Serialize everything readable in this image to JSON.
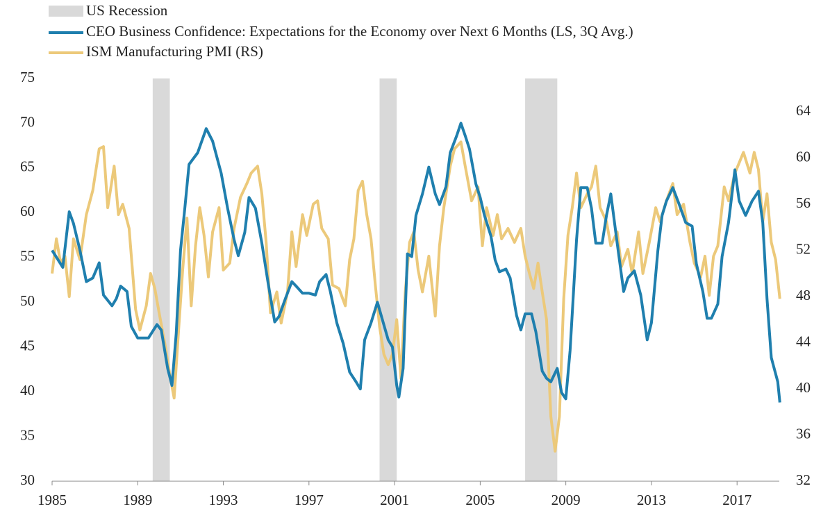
{
  "chart_data": {
    "type": "line",
    "recessions": {
      "name": "US Recession",
      "color": "#d9d9d9",
      "periods": [
        [
          1989.7,
          1990.5
        ],
        [
          2000.3,
          2001.1
        ],
        [
          2007.1,
          2008.6
        ]
      ]
    },
    "xlim": [
      1985,
      2019.2
    ],
    "xticks": [
      1985,
      1989,
      1993,
      1997,
      2001,
      2005,
      2009,
      2013,
      2017
    ],
    "ylim": [
      30,
      75
    ],
    "yticks": [
      30,
      35,
      40,
      45,
      50,
      55,
      60,
      65,
      70,
      75
    ],
    "y2lim": [
      32,
      66.9
    ],
    "y2ticks": [
      32,
      36,
      40,
      44,
      48,
      52,
      56,
      60,
      64
    ],
    "series": [
      {
        "name": "CEO Business Confidence: Expectations for the Economy over Next 6 Months (LS, 3Q Avg.)",
        "color": "#1f7fae",
        "axis": "y",
        "x": [
          1985.0,
          1985.5,
          1985.8,
          1986.0,
          1986.3,
          1986.6,
          1986.9,
          1987.2,
          1987.4,
          1987.8,
          1988.0,
          1988.2,
          1988.5,
          1988.7,
          1989.0,
          1989.5,
          1989.9,
          1990.1,
          1990.4,
          1990.6,
          1990.8,
          1991.0,
          1991.2,
          1991.4,
          1991.8,
          1992.2,
          1992.5,
          1992.9,
          1993.2,
          1993.5,
          1993.7,
          1994.0,
          1994.2,
          1994.5,
          1994.8,
          1995.1,
          1995.4,
          1995.6,
          1995.9,
          1996.2,
          1996.4,
          1996.7,
          1997.0,
          1997.3,
          1997.5,
          1997.8,
          1998.0,
          1998.3,
          1998.6,
          1998.9,
          1999.2,
          1999.4,
          1999.6,
          1999.9,
          2000.2,
          2000.4,
          2000.7,
          2000.9,
          2001.1,
          2001.2,
          2001.4,
          2001.6,
          2001.8,
          2002.0,
          2002.3,
          2002.6,
          2002.9,
          2003.1,
          2003.4,
          2003.6,
          2003.9,
          2004.1,
          2004.3,
          2004.5,
          2004.8,
          2005.0,
          2005.2,
          2005.5,
          2005.7,
          2005.9,
          2006.2,
          2006.4,
          2006.7,
          2006.9,
          2007.1,
          2007.4,
          2007.6,
          2007.9,
          2008.1,
          2008.3,
          2008.6,
          2008.8,
          2009.0,
          2009.2,
          2009.5,
          2009.7,
          2010.0,
          2010.2,
          2010.4,
          2010.7,
          2010.9,
          2011.1,
          2011.4,
          2011.7,
          2011.9,
          2012.2,
          2012.5,
          2012.8,
          2013.0,
          2013.3,
          2013.5,
          2013.7,
          2014.0,
          2014.3,
          2014.6,
          2014.9,
          2015.1,
          2015.4,
          2015.6,
          2015.8,
          2016.1,
          2016.3,
          2016.6,
          2016.9,
          2017.1,
          2017.4,
          2017.7,
          2018.0,
          2018.2,
          2018.4,
          2018.6,
          2018.9,
          2019.0
        ],
        "values": [
          55.8,
          53.9,
          60.1,
          58.8,
          55.8,
          52.3,
          52.7,
          54.4,
          50.8,
          49.6,
          50.4,
          51.8,
          51.2,
          47.3,
          46.0,
          46.0,
          47.5,
          46.9,
          42.6,
          40.7,
          46.5,
          55.8,
          60.5,
          65.4,
          66.7,
          69.4,
          68.0,
          64.4,
          60.5,
          57.0,
          55.2,
          57.8,
          61.7,
          60.5,
          56.6,
          52.0,
          47.8,
          48.4,
          50.4,
          52.3,
          51.8,
          51.0,
          51.0,
          50.8,
          52.3,
          53.1,
          51.2,
          47.7,
          45.4,
          42.2,
          41.1,
          40.3,
          45.8,
          47.7,
          50.0,
          48.3,
          45.8,
          45.0,
          40.7,
          39.4,
          42.6,
          55.4,
          55.1,
          59.7,
          62.1,
          65.1,
          62.1,
          60.9,
          62.9,
          66.7,
          68.6,
          70.0,
          68.6,
          67.1,
          63.2,
          61.7,
          59.7,
          57.4,
          54.7,
          53.4,
          53.7,
          52.7,
          48.5,
          46.9,
          48.7,
          48.7,
          46.7,
          42.3,
          41.5,
          41.1,
          42.6,
          39.9,
          39.2,
          44.6,
          57.0,
          62.8,
          62.8,
          60.5,
          56.6,
          56.6,
          59.7,
          62.1,
          56.6,
          51.2,
          52.7,
          53.5,
          50.8,
          45.8,
          47.7,
          55.8,
          59.7,
          61.3,
          62.8,
          60.9,
          58.9,
          58.5,
          54.3,
          51.2,
          48.2,
          48.2,
          49.8,
          55.1,
          58.9,
          64.8,
          61.3,
          59.7,
          61.3,
          62.4,
          58.9,
          50.4,
          43.8,
          41.1,
          38.8
        ]
      },
      {
        "name": "ISM Manufacturing PMI (RS)",
        "color": "#ecc97a",
        "axis": "y2",
        "x": [
          1985.0,
          1985.2,
          1985.4,
          1985.6,
          1985.8,
          1986.0,
          1986.3,
          1986.6,
          1986.9,
          1987.2,
          1987.4,
          1987.6,
          1987.9,
          1988.1,
          1988.3,
          1988.6,
          1988.9,
          1989.1,
          1989.4,
          1989.6,
          1989.8,
          1990.0,
          1990.3,
          1990.5,
          1990.7,
          1990.9,
          1991.1,
          1991.3,
          1991.5,
          1991.7,
          1991.9,
          1992.1,
          1992.3,
          1992.5,
          1992.8,
          1993.0,
          1993.3,
          1993.5,
          1993.8,
          1994.1,
          1994.3,
          1994.6,
          1994.8,
          1995.0,
          1995.2,
          1995.5,
          1995.7,
          1996.0,
          1996.2,
          1996.4,
          1996.7,
          1996.9,
          1997.2,
          1997.4,
          1997.6,
          1997.9,
          1998.1,
          1998.4,
          1998.7,
          1998.9,
          1999.1,
          1999.3,
          1999.5,
          1999.7,
          1999.9,
          2000.1,
          2000.3,
          2000.5,
          2000.7,
          2000.9,
          2001.1,
          2001.3,
          2001.5,
          2001.7,
          2001.9,
          2002.1,
          2002.3,
          2002.6,
          2002.9,
          2003.1,
          2003.3,
          2003.6,
          2003.8,
          2004.1,
          2004.3,
          2004.6,
          2004.9,
          2005.1,
          2005.3,
          2005.6,
          2005.8,
          2006.0,
          2006.3,
          2006.6,
          2006.9,
          2007.1,
          2007.3,
          2007.5,
          2007.7,
          2007.9,
          2008.1,
          2008.3,
          2008.5,
          2008.7,
          2008.9,
          2009.1,
          2009.3,
          2009.5,
          2009.7,
          2010.0,
          2010.2,
          2010.4,
          2010.6,
          2010.9,
          2011.1,
          2011.4,
          2011.6,
          2011.9,
          2012.1,
          2012.4,
          2012.6,
          2012.9,
          2013.2,
          2013.4,
          2013.7,
          2014.0,
          2014.2,
          2014.5,
          2014.8,
          2015.0,
          2015.3,
          2015.5,
          2015.7,
          2015.9,
          2016.1,
          2016.4,
          2016.6,
          2016.9,
          2017.1,
          2017.3,
          2017.6,
          2017.8,
          2018.0,
          2018.2,
          2018.4,
          2018.6,
          2018.8,
          2019.0
        ],
        "values": [
          50.0,
          53.0,
          50.9,
          51.5,
          48.0,
          53.0,
          51.2,
          55.1,
          57.2,
          60.8,
          61.0,
          55.7,
          59.3,
          55.1,
          56.0,
          53.9,
          46.9,
          45.1,
          47.2,
          50.0,
          48.7,
          46.6,
          43.6,
          41.2,
          39.2,
          44.8,
          50.3,
          54.8,
          47.2,
          52.4,
          55.7,
          53.3,
          49.7,
          53.6,
          55.7,
          50.3,
          50.9,
          53.9,
          56.6,
          57.8,
          58.7,
          59.3,
          56.9,
          52.7,
          46.6,
          48.4,
          45.7,
          48.4,
          53.6,
          50.6,
          55.1,
          53.3,
          56.0,
          56.3,
          53.9,
          53.0,
          49.0,
          48.7,
          47.2,
          51.2,
          53.0,
          57.2,
          58.0,
          55.1,
          53.0,
          49.0,
          45.4,
          43.0,
          42.1,
          43.0,
          46.0,
          40.9,
          48.4,
          52.7,
          53.6,
          50.3,
          48.4,
          51.5,
          46.3,
          52.4,
          55.7,
          59.3,
          60.8,
          61.4,
          59.3,
          56.3,
          57.5,
          52.4,
          55.7,
          53.3,
          55.1,
          53.0,
          53.9,
          52.7,
          53.9,
          51.5,
          50.0,
          48.7,
          50.9,
          48.4,
          46.0,
          37.6,
          34.6,
          37.6,
          47.8,
          53.3,
          55.7,
          58.7,
          55.7,
          56.9,
          57.5,
          59.3,
          55.7,
          54.5,
          52.4,
          53.6,
          50.6,
          52.1,
          50.0,
          53.6,
          50.0,
          52.7,
          55.7,
          54.5,
          56.3,
          57.8,
          55.1,
          56.0,
          52.7,
          50.9,
          49.7,
          51.5,
          48.1,
          51.5,
          52.4,
          57.5,
          56.3,
          58.7,
          59.6,
          60.5,
          58.7,
          60.5,
          59.0,
          54.5,
          56.9,
          52.7,
          51.2,
          47.8
        ]
      }
    ]
  }
}
